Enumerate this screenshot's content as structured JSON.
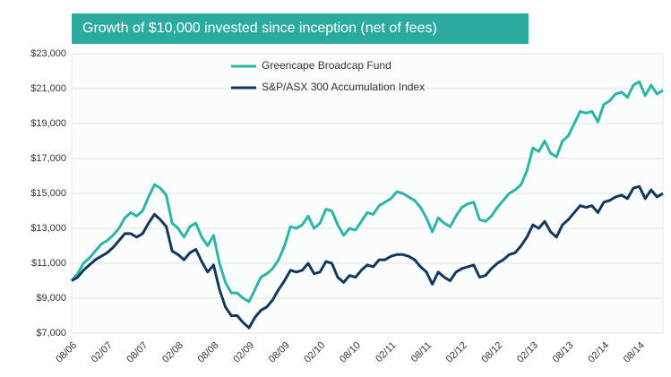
{
  "chart_data": {
    "type": "line",
    "title": "Growth of $10,000 invested since inception (net of fees)",
    "categories": [
      "08/06",
      null,
      null,
      null,
      null,
      null,
      "02/07",
      null,
      null,
      null,
      null,
      null,
      "08/07",
      null,
      null,
      null,
      null,
      null,
      "02/08",
      null,
      null,
      null,
      null,
      null,
      "08/08",
      null,
      null,
      null,
      null,
      null,
      "02/09",
      null,
      null,
      null,
      null,
      null,
      "08/09",
      null,
      null,
      null,
      null,
      null,
      "02/10",
      null,
      null,
      null,
      null,
      null,
      "08/10",
      null,
      null,
      null,
      null,
      null,
      "02/11",
      null,
      null,
      null,
      null,
      null,
      "08/11",
      null,
      null,
      null,
      null,
      null,
      "02/12",
      null,
      null,
      null,
      null,
      null,
      "08/12",
      null,
      null,
      null,
      null,
      null,
      "02/13",
      null,
      null,
      null,
      null,
      null,
      "08/13",
      null,
      null,
      null,
      null,
      null,
      "02/14",
      null,
      null,
      null,
      null,
      null,
      "08/14",
      null,
      null,
      null,
      null
    ],
    "series": [
      {
        "name": "Greencape Broadcap Fund",
        "color": "#2bb5a8",
        "values": [
          10000,
          10400,
          11000,
          11300,
          11700,
          12100,
          12300,
          12600,
          13000,
          13600,
          13900,
          13700,
          14000,
          14800,
          15500,
          15300,
          14900,
          13300,
          13000,
          12500,
          13100,
          13300,
          12500,
          12000,
          12600,
          11000,
          9900,
          9300,
          9300,
          9000,
          8800,
          9500,
          10200,
          10400,
          10700,
          11200,
          12000,
          13100,
          13000,
          13200,
          13700,
          13000,
          13300,
          14100,
          14000,
          13200,
          12600,
          13000,
          12900,
          13400,
          13900,
          13800,
          14300,
          14500,
          14700,
          15100,
          15000,
          14800,
          14600,
          14200,
          13600,
          12800,
          13600,
          13300,
          13100,
          13700,
          14200,
          14400,
          14500,
          13500,
          13400,
          13700,
          14200,
          14600,
          15000,
          15200,
          15500,
          16300,
          17600,
          17400,
          18000,
          17300,
          17100,
          18000,
          18300,
          19000,
          19700,
          19600,
          19700,
          19100,
          20100,
          20300,
          20700,
          20800,
          20500,
          21200,
          21400,
          20600,
          21200,
          20700,
          20900
        ]
      },
      {
        "name": "S&P/ASX 300 Accumulation Index",
        "color": "#14375e",
        "values": [
          10000,
          10200,
          10600,
          10900,
          11200,
          11400,
          11600,
          11900,
          12300,
          12700,
          12700,
          12500,
          12700,
          13300,
          13800,
          13500,
          13100,
          11700,
          11500,
          11200,
          11600,
          11800,
          11100,
          10500,
          10900,
          9500,
          8500,
          8000,
          8000,
          7600,
          7300,
          7900,
          8300,
          8500,
          8900,
          9500,
          10000,
          10600,
          10500,
          10600,
          11000,
          10400,
          10500,
          11100,
          11000,
          10200,
          9900,
          10300,
          10200,
          10600,
          10900,
          10800,
          11200,
          11200,
          11400,
          11500,
          11500,
          11400,
          11200,
          10800,
          10500,
          9800,
          10500,
          10200,
          10000,
          10500,
          10700,
          10800,
          10900,
          10200,
          10300,
          10700,
          11000,
          11200,
          11500,
          11600,
          12000,
          12500,
          13200,
          13000,
          13400,
          12800,
          12500,
          13200,
          13500,
          13900,
          14300,
          14200,
          14300,
          13900,
          14500,
          14600,
          14800,
          14900,
          14700,
          15300,
          15400,
          14700,
          15200,
          14800,
          15000
        ]
      }
    ],
    "ylim": [
      7000,
      23000
    ],
    "yticks": [
      {
        "value": 7000,
        "label": "$7,000"
      },
      {
        "value": 9000,
        "label": "$9,000"
      },
      {
        "value": 11000,
        "label": "$11,000"
      },
      {
        "value": 13000,
        "label": "$13,000"
      },
      {
        "value": 15000,
        "label": "$15,000"
      },
      {
        "value": 17000,
        "label": "$17,000"
      },
      {
        "value": 19000,
        "label": "$19,000"
      },
      {
        "value": 21000,
        "label": "$21,000"
      },
      {
        "value": 23000,
        "label": "$23,000"
      }
    ],
    "grid": true
  }
}
